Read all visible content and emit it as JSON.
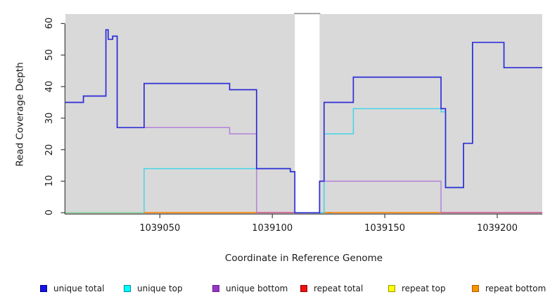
{
  "chart_data": {
    "type": "line",
    "subtype": "step",
    "title": "",
    "xlabel": "Coordinate in Reference Genome",
    "ylabel": "Read Coverage Depth",
    "xlim": [
      1039008,
      1039220
    ],
    "ylim": [
      0,
      63
    ],
    "x_ticks": [
      1039050,
      1039100,
      1039150,
      1039200
    ],
    "y_ticks": [
      0,
      10,
      20,
      30,
      40,
      50,
      60
    ],
    "panel_bg": "#d9d9d9",
    "axis_color": "#404040",
    "gap_region": {
      "x1": 1039110,
      "x2": 1039121,
      "fill": "#ffffff",
      "top_border": "#8f8f8f"
    },
    "series": [
      {
        "name": "unique total",
        "color": "#2e2ed6",
        "points": [
          [
            1039008,
            35
          ],
          [
            1039016,
            37
          ],
          [
            1039026,
            58
          ],
          [
            1039027,
            55
          ],
          [
            1039029,
            56
          ],
          [
            1039031,
            27
          ],
          [
            1039043,
            41
          ],
          [
            1039081,
            39
          ],
          [
            1039093,
            14
          ],
          [
            1039108,
            13
          ],
          [
            1039110,
            0
          ],
          [
            1039121,
            10
          ],
          [
            1039123,
            35
          ],
          [
            1039136,
            43
          ],
          [
            1039175,
            33
          ],
          [
            1039177,
            8
          ],
          [
            1039185,
            22
          ],
          [
            1039189,
            54
          ],
          [
            1039203,
            46
          ],
          [
            1039220,
            46
          ]
        ]
      },
      {
        "name": "unique top",
        "color": "#45d5e8",
        "points": [
          [
            1039008,
            0
          ],
          [
            1039043,
            14
          ],
          [
            1039108,
            13
          ],
          [
            1039110,
            0
          ],
          [
            1039123,
            25
          ],
          [
            1039136,
            33
          ],
          [
            1039175,
            32
          ],
          [
            1039177,
            8
          ],
          [
            1039185,
            22
          ],
          [
            1039189,
            54
          ],
          [
            1039203,
            46
          ],
          [
            1039220,
            46
          ]
        ]
      },
      {
        "name": "unique bottom",
        "color": "#b382d9",
        "points": [
          [
            1039008,
            35
          ],
          [
            1039016,
            37
          ],
          [
            1039026,
            58
          ],
          [
            1039027,
            55
          ],
          [
            1039029,
            56
          ],
          [
            1039031,
            27
          ],
          [
            1039081,
            25
          ],
          [
            1039093,
            0
          ],
          [
            1039121,
            10
          ],
          [
            1039175,
            0
          ],
          [
            1039220,
            0
          ]
        ]
      },
      {
        "name": "repeat total",
        "color": "#ee1111",
        "points": [
          [
            1039008,
            0
          ],
          [
            1039220,
            0
          ]
        ]
      },
      {
        "name": "repeat top",
        "color": "#ffff00",
        "points": [
          [
            1039008,
            0
          ],
          [
            1039220,
            0
          ]
        ]
      },
      {
        "name": "repeat bottom",
        "color": "#f59300",
        "points": [
          [
            1039008,
            0
          ],
          [
            1039220,
            0
          ]
        ]
      }
    ],
    "baseline_segments": [
      {
        "x1": 1039008,
        "x2": 1039043,
        "color": "#9bd69b"
      },
      {
        "x1": 1039043,
        "x2": 1039093,
        "color": "#ff8c1a"
      },
      {
        "x1": 1039093,
        "x2": 1039110,
        "color": "#d4628f"
      },
      {
        "x1": 1039123,
        "x2": 1039175,
        "color": "#ff8c1a"
      },
      {
        "x1": 1039175,
        "x2": 1039220,
        "color": "#d4628f"
      }
    ],
    "legend_position": "bottom"
  },
  "legend": {
    "items": [
      {
        "label": "unique total",
        "fill": "#1414e0",
        "border": "#0000a0"
      },
      {
        "label": "unique top",
        "fill": "#00ffff",
        "border": "#008b9e"
      },
      {
        "label": "unique bottom",
        "fill": "#9933cc",
        "border": "#662288"
      },
      {
        "label": "repeat total",
        "fill": "#ee1111",
        "border": "#990000"
      },
      {
        "label": "repeat top",
        "fill": "#ffff00",
        "border": "#9b9b00"
      },
      {
        "label": "repeat bottom",
        "fill": "#f59300",
        "border": "#b06000"
      }
    ]
  }
}
